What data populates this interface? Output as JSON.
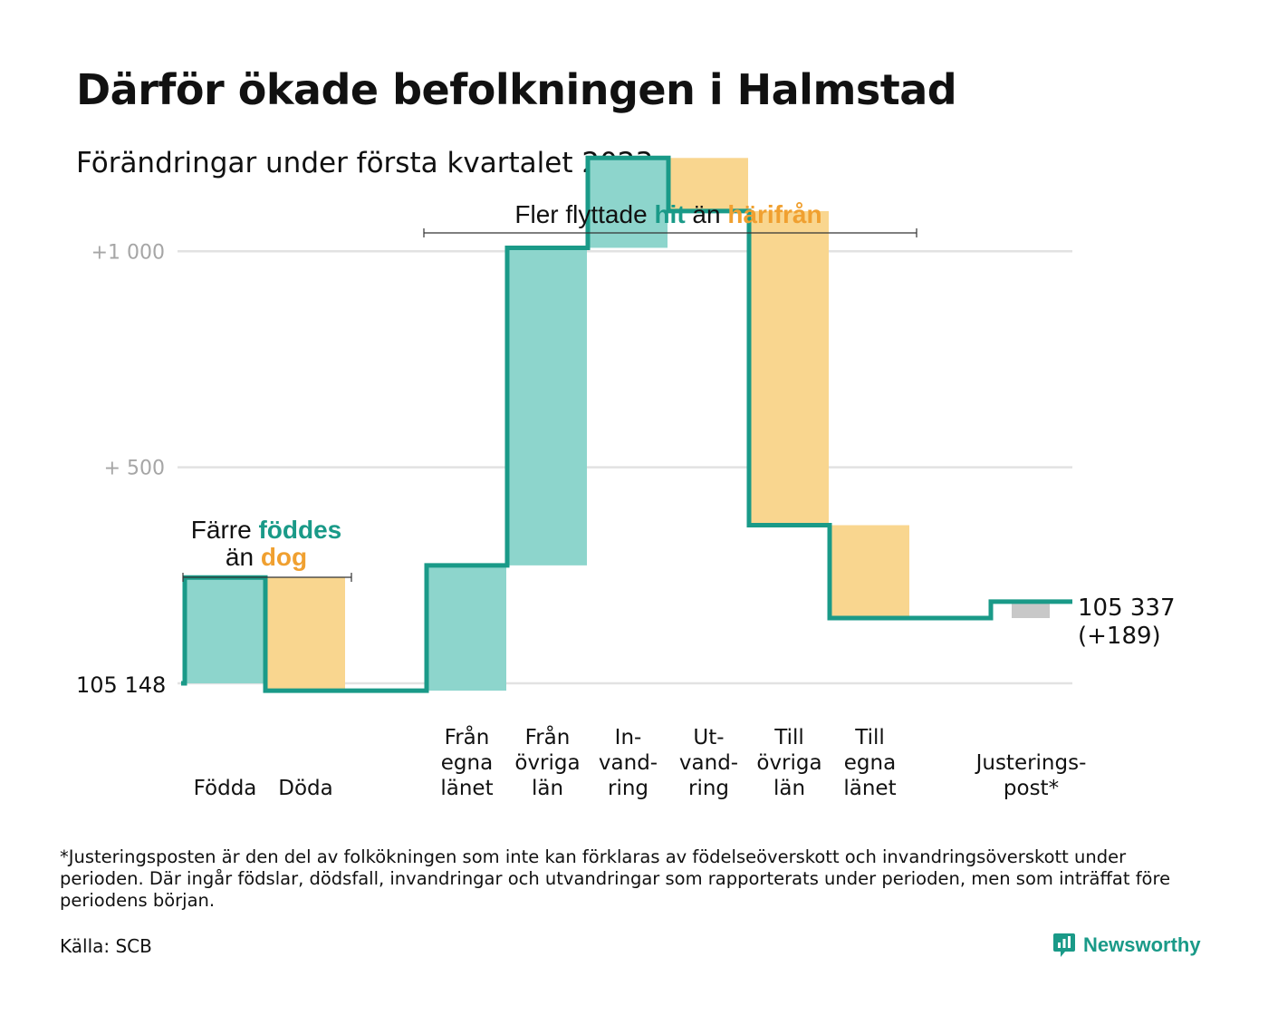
{
  "title": "Därför ökade befolkningen i Halmstad",
  "subtitle": "Förändringar under första kvartalet 2023",
  "colors": {
    "teal_line": "#1a9a88",
    "teal_fill": "#8dd5cc",
    "orange_fill": "#f9d68f",
    "teal_text": "#1a9a88",
    "orange_text": "#f0a030",
    "gray_fill": "#c8c8c8",
    "grid": "#e2e2e2",
    "tick_text": "#a6a6a6",
    "brand": "#1a9a88"
  },
  "annotations": {
    "births": {
      "line1_pre": "Färre ",
      "line1_hl": "föddes",
      "line2_pre": "än ",
      "line2_hl": "dog"
    },
    "migration": {
      "pre": "Fler flyttade ",
      "hl1": "hit",
      "mid": " än ",
      "hl2": "härifrån"
    }
  },
  "start_label": "105 148",
  "end_label": {
    "line1": "105 337",
    "line2": "(+189)"
  },
  "chart_data": {
    "type": "waterfall",
    "start_value": 105148,
    "end_value": 105337,
    "y_ticks": [
      {
        "value": 0,
        "label": ""
      },
      {
        "value": 500,
        "label": "+ 500"
      },
      {
        "value": 1000,
        "label": "+1 000"
      }
    ],
    "ylim": [
      -65,
      1225
    ],
    "grid": true,
    "steps": [
      {
        "category": [
          "Födda"
        ],
        "delta": 245,
        "kind": "inflow"
      },
      {
        "category": [
          "Döda"
        ],
        "delta": -262,
        "kind": "outflow"
      },
      {
        "category": [],
        "delta": 0,
        "kind": "spacer"
      },
      {
        "category": [
          "Från",
          "egna",
          "länet"
        ],
        "delta": 290,
        "kind": "inflow"
      },
      {
        "category": [
          "Från",
          "övriga",
          "län"
        ],
        "delta": 735,
        "kind": "inflow"
      },
      {
        "category": [
          "In-",
          "vand-",
          "ring"
        ],
        "delta": 208,
        "kind": "inflow"
      },
      {
        "category": [
          "Ut-",
          "vand-",
          "ring"
        ],
        "delta": -123,
        "kind": "outflow"
      },
      {
        "category": [
          "Till",
          "övriga",
          "län"
        ],
        "delta": -727,
        "kind": "outflow"
      },
      {
        "category": [
          "Till",
          "egna",
          "länet"
        ],
        "delta": -215,
        "kind": "outflow"
      },
      {
        "category": [],
        "delta": 0,
        "kind": "spacer"
      },
      {
        "category": [
          "Justerings-",
          "post*"
        ],
        "delta": 38,
        "kind": "adjustment"
      }
    ]
  },
  "footnote": "*Justeringsposten är den del av folkökningen som inte kan förklaras av födelseöverskott och invandringsöverskott under perioden. Där ingår födslar, dödsfall, invandringar och utvandringar som rapporterats under perioden, men som inträffat före periodens början.",
  "source": "Källa: SCB",
  "brand_name": "Newsworthy"
}
